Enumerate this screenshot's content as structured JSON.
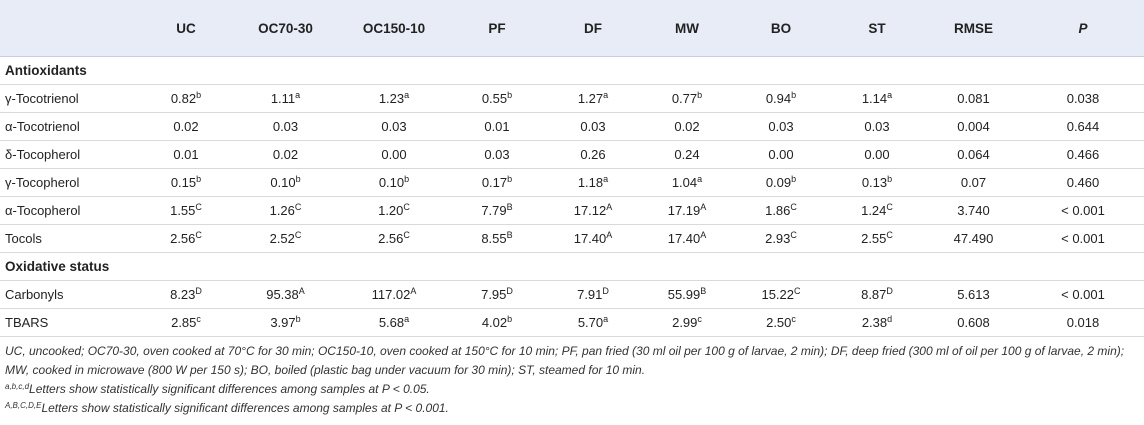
{
  "table": {
    "columns": [
      "",
      "UC",
      "OC70-30",
      "OC150-10",
      "PF",
      "DF",
      "MW",
      "BO",
      "ST",
      "RMSE",
      "P"
    ],
    "sections": [
      {
        "title": "Antioxidants",
        "rows": [
          {
            "name": "γ-Tocotrienol",
            "cells": [
              [
                "0.82",
                "b"
              ],
              [
                "1.11",
                "a"
              ],
              [
                "1.23",
                "a"
              ],
              [
                "0.55",
                "b"
              ],
              [
                "1.27",
                "a"
              ],
              [
                "0.77",
                "b"
              ],
              [
                "0.94",
                "b"
              ],
              [
                "1.14",
                "a"
              ],
              [
                "0.081",
                ""
              ],
              [
                "0.038",
                ""
              ]
            ]
          },
          {
            "name": "α-Tocotrienol",
            "cells": [
              [
                "0.02",
                ""
              ],
              [
                "0.03",
                ""
              ],
              [
                "0.03",
                ""
              ],
              [
                "0.01",
                ""
              ],
              [
                "0.03",
                ""
              ],
              [
                "0.02",
                ""
              ],
              [
                "0.03",
                ""
              ],
              [
                "0.03",
                ""
              ],
              [
                "0.004",
                ""
              ],
              [
                "0.644",
                ""
              ]
            ]
          },
          {
            "name": "δ-Tocopherol",
            "cells": [
              [
                "0.01",
                ""
              ],
              [
                "0.02",
                ""
              ],
              [
                "0.00",
                ""
              ],
              [
                "0.03",
                ""
              ],
              [
                "0.26",
                ""
              ],
              [
                "0.24",
                ""
              ],
              [
                "0.00",
                ""
              ],
              [
                "0.00",
                ""
              ],
              [
                "0.064",
                ""
              ],
              [
                "0.466",
                ""
              ]
            ]
          },
          {
            "name": "γ-Tocopherol",
            "cells": [
              [
                "0.15",
                "b"
              ],
              [
                "0.10",
                "b"
              ],
              [
                "0.10",
                "b"
              ],
              [
                "0.17",
                "b"
              ],
              [
                "1.18",
                "a"
              ],
              [
                "1.04",
                "a"
              ],
              [
                "0.09",
                "b"
              ],
              [
                "0.13",
                "b"
              ],
              [
                "0.07",
                ""
              ],
              [
                "0.460",
                ""
              ]
            ]
          },
          {
            "name": "α-Tocopherol",
            "cells": [
              [
                "1.55",
                "C"
              ],
              [
                "1.26",
                "C"
              ],
              [
                "1.20",
                "C"
              ],
              [
                "7.79",
                "B"
              ],
              [
                "17.12",
                "A"
              ],
              [
                "17.19",
                "A"
              ],
              [
                "1.86",
                "C"
              ],
              [
                "1.24",
                "C"
              ],
              [
                "3.740",
                ""
              ],
              [
                "< 0.001",
                ""
              ]
            ]
          },
          {
            "name": "Tocols",
            "cells": [
              [
                "2.56",
                "C"
              ],
              [
                "2.52",
                "C"
              ],
              [
                "2.56",
                "C"
              ],
              [
                "8.55",
                "B"
              ],
              [
                "17.40",
                "A"
              ],
              [
                "17.40",
                "A"
              ],
              [
                "2.93",
                "C"
              ],
              [
                "2.55",
                "C"
              ],
              [
                "47.490",
                ""
              ],
              [
                "< 0.001",
                ""
              ]
            ]
          }
        ]
      },
      {
        "title": "Oxidative status",
        "rows": [
          {
            "name": "Carbonyls",
            "cells": [
              [
                "8.23",
                "D"
              ],
              [
                "95.38",
                "A"
              ],
              [
                "117.02",
                "A"
              ],
              [
                "7.95",
                "D"
              ],
              [
                "7.91",
                "D"
              ],
              [
                "55.99",
                "B"
              ],
              [
                "15.22",
                "C"
              ],
              [
                "8.87",
                "D"
              ],
              [
                "5.613",
                ""
              ],
              [
                "< 0.001",
                ""
              ]
            ]
          },
          {
            "name": "TBARS",
            "cells": [
              [
                "2.85",
                "c"
              ],
              [
                "3.97",
                "b"
              ],
              [
                "5.68",
                "a"
              ],
              [
                "4.02",
                "b"
              ],
              [
                "5.70",
                "a"
              ],
              [
                "2.99",
                "c"
              ],
              [
                "2.50",
                "c"
              ],
              [
                "2.38",
                "d"
              ],
              [
                "0.608",
                ""
              ],
              [
                "0.018",
                ""
              ]
            ]
          }
        ]
      }
    ]
  },
  "footnotes": {
    "abbreviations": "UC, uncooked; OC70-30, oven cooked at 70°C for 30 min; OC150-10, oven cooked at 150°C for 10 min; PF, pan fried (30 ml oil per 100 g of larvae, 2 min); DF, deep fried (300 ml of oil per 100 g of larvae, 2 min); MW, cooked in microwave (800 W per 150 s); BO, boiled (plastic bag under vacuum for 30 min); ST, steamed for 10 min.",
    "lowercase_marker": "a,b,c,d",
    "lowercase_text": "Letters show statistically significant differences among samples at P < 0.05.",
    "uppercase_marker": "A,B,C,D,E",
    "uppercase_text": "Letters show statistically significant differences among samples at P < 0.001."
  }
}
